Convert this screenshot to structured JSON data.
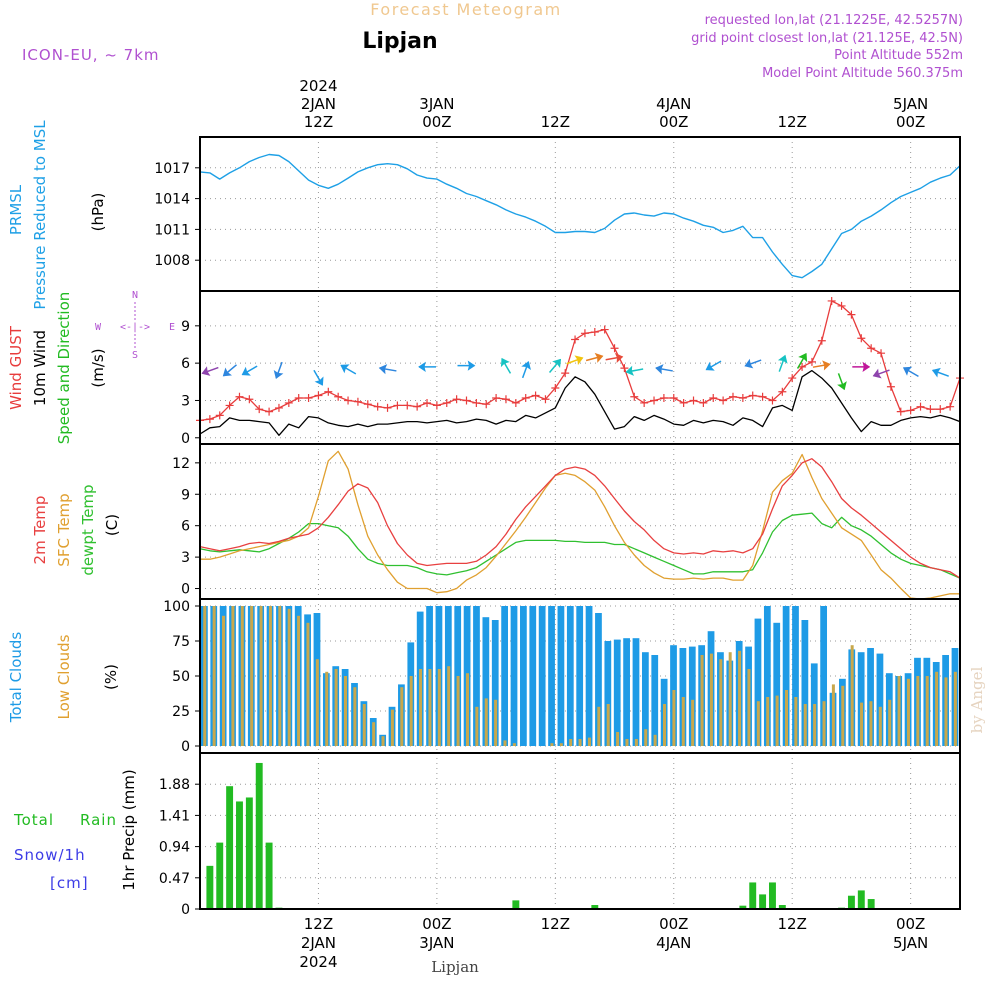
{
  "header": {
    "title": "Forecast Meteogram",
    "location": "Lipjan",
    "model": "ICON-EU, ~ 7km",
    "requested": "requested lon,lat (21.1225E, 42.5257N)",
    "gridpoint": "grid point closest lon,lat (21.125E, 42.5N)",
    "point_alt": "Point Altitude 552m",
    "model_alt": "Model Point Altitude 560.375m",
    "footer": "Lipjan",
    "credit": "by Angel"
  },
  "colors": {
    "pressure": "#1ea0e6",
    "gust": "#e83c3c",
    "wind": "#000000",
    "direction": "#22bb22",
    "t2m": "#e84040",
    "sfc": "#e0a030",
    "dew": "#30c030",
    "total_cloud": "#1e9be6",
    "low_cloud": "#c8a84c",
    "rain": "#22bb22",
    "snow": "#3c3ce6",
    "title": "#f0c890",
    "meta": "#b050d0"
  },
  "time_axis": {
    "hour_start": 0,
    "hour_end": 77,
    "ticks": [
      {
        "hour": 12,
        "top": [
          "2024",
          "2JAN",
          "12Z"
        ],
        "bottom": [
          "12Z",
          "2JAN",
          "2024"
        ]
      },
      {
        "hour": 24,
        "top": [
          "3JAN",
          "00Z"
        ],
        "bottom": [
          "00Z",
          "3JAN"
        ]
      },
      {
        "hour": 36,
        "top": [
          "12Z"
        ],
        "bottom": [
          "12Z"
        ]
      },
      {
        "hour": 48,
        "top": [
          "4JAN",
          "00Z"
        ],
        "bottom": [
          "00Z",
          "4JAN"
        ]
      },
      {
        "hour": 60,
        "top": [
          "12Z"
        ],
        "bottom": [
          "12Z"
        ]
      },
      {
        "hour": 72,
        "top": [
          "5JAN",
          "00Z"
        ],
        "bottom": [
          "00Z",
          "5JAN"
        ]
      }
    ]
  },
  "panel_labels": {
    "pressure": [
      "PRMSL",
      "Pressure Reduced to MSL",
      "(hPa)"
    ],
    "wind": [
      "Wind GUST",
      "10m Wind",
      "Speed and Direction",
      "(m/s)"
    ],
    "compass": {
      "n": "N",
      "s": "S",
      "w": "W",
      "e": "E",
      "arrows": "<-|->"
    },
    "temp": [
      "2m Temp",
      "SFC Temp",
      "dewpt Temp",
      "(C)"
    ],
    "cloud": [
      "Total Clouds",
      "Low Clouds",
      "(%)"
    ],
    "precip": [
      "Total",
      "Rain",
      "Snow/1h",
      "[cm]",
      "1hr Precip (mm)"
    ]
  },
  "chart_data": [
    {
      "type": "line",
      "name": "pressure",
      "ylabel": "(hPa)",
      "ylim": [
        1005,
        1020
      ],
      "yticks": [
        1008,
        1011,
        1014,
        1017
      ],
      "x": [
        0,
        1,
        2,
        3,
        4,
        5,
        6,
        7,
        8,
        9,
        10,
        11,
        12,
        13,
        14,
        15,
        16,
        17,
        18,
        19,
        20,
        21,
        22,
        23,
        24,
        25,
        26,
        27,
        28,
        29,
        30,
        31,
        32,
        33,
        34,
        35,
        36,
        37,
        38,
        39,
        40,
        41,
        42,
        43,
        44,
        45,
        46,
        47,
        48,
        49,
        50,
        51,
        52,
        53,
        54,
        55,
        56,
        57,
        58,
        59,
        60,
        61,
        62,
        63,
        64,
        65,
        66,
        67,
        68,
        69,
        70,
        71,
        72,
        73,
        74,
        75,
        76,
        77
      ],
      "values": [
        1016.6,
        1016.5,
        1015.9,
        1016.5,
        1017.0,
        1017.6,
        1018.0,
        1018.3,
        1018.2,
        1017.6,
        1016.7,
        1015.8,
        1015.3,
        1015.0,
        1015.4,
        1016.0,
        1016.6,
        1017.0,
        1017.3,
        1017.4,
        1017.3,
        1016.9,
        1016.3,
        1016.0,
        1015.9,
        1015.4,
        1015.0,
        1014.5,
        1014.2,
        1013.8,
        1013.4,
        1012.9,
        1012.5,
        1012.2,
        1011.8,
        1011.3,
        1010.7,
        1010.7,
        1010.8,
        1010.8,
        1010.7,
        1011.1,
        1011.9,
        1012.5,
        1012.6,
        1012.4,
        1012.3,
        1012.6,
        1012.5,
        1012.1,
        1011.8,
        1011.4,
        1011.2,
        1010.7,
        1010.9,
        1011.3,
        1010.2,
        1010.2,
        1008.8,
        1007.6,
        1006.5,
        1006.3,
        1006.9,
        1007.6,
        1009.1,
        1010.6,
        1011.0,
        1011.8,
        1012.3,
        1012.9,
        1013.6,
        1014.2,
        1014.6,
        1015.0,
        1015.6,
        1016.0,
        1016.3,
        1017.2
      ]
    },
    {
      "type": "line",
      "name": "wind",
      "ylabel": "(m/s)",
      "ylim": [
        -0.5,
        11.8
      ],
      "yticks": [
        0,
        3,
        6,
        9
      ],
      "series": [
        {
          "name": "Wind GUST",
          "values": [
            1.4,
            1.5,
            1.8,
            2.6,
            3.3,
            3.1,
            2.3,
            2.1,
            2.4,
            2.8,
            3.2,
            3.2,
            3.4,
            3.7,
            3.3,
            3.0,
            2.9,
            2.7,
            2.5,
            2.4,
            2.6,
            2.6,
            2.5,
            2.8,
            2.6,
            2.8,
            3.1,
            3.0,
            2.8,
            2.7,
            3.2,
            3.1,
            2.8,
            3.2,
            3.4,
            3.1,
            4.0,
            5.2,
            7.9,
            8.4,
            8.5,
            8.7,
            7.2,
            5.6,
            3.3,
            2.8,
            3.0,
            3.2,
            3.2,
            2.8,
            3.0,
            2.8,
            3.2,
            3.0,
            3.3,
            3.2,
            3.4,
            3.3,
            3.0,
            3.7,
            4.8,
            5.7,
            6.1,
            7.8,
            11.0,
            10.6,
            9.9,
            8.0,
            7.2,
            6.8,
            4.1,
            2.1,
            2.2,
            2.5,
            2.3,
            2.3,
            2.5,
            4.8
          ]
        },
        {
          "name": "10m Wind",
          "values": [
            0.3,
            0.8,
            0.9,
            1.6,
            1.4,
            1.4,
            1.3,
            1.2,
            0.2,
            1.1,
            0.8,
            1.7,
            1.6,
            1.2,
            1.0,
            0.9,
            1.1,
            0.9,
            1.1,
            1.1,
            1.2,
            1.3,
            1.3,
            1.2,
            1.3,
            1.4,
            1.2,
            1.3,
            1.5,
            1.4,
            1.1,
            1.4,
            1.3,
            1.8,
            1.6,
            2.0,
            2.4,
            4.0,
            4.9,
            4.5,
            3.5,
            2.1,
            0.7,
            0.9,
            1.7,
            1.4,
            1.8,
            1.5,
            1.1,
            1.0,
            1.4,
            1.2,
            1.4,
            1.3,
            1.0,
            1.6,
            1.4,
            0.9,
            2.4,
            2.6,
            2.2,
            4.9,
            5.4,
            4.8,
            4.0,
            2.8,
            1.6,
            0.5,
            1.3,
            1.0,
            1.0,
            1.4,
            1.6,
            1.7,
            1.6,
            1.8,
            1.6,
            1.3
          ]
        }
      ],
      "arrows": [
        {
          "h": 1,
          "dir": 250,
          "color": "#8e44ad",
          "y": 5.4
        },
        {
          "h": 3,
          "dir": 230,
          "color": "#2e86de",
          "y": 5.4
        },
        {
          "h": 5,
          "dir": 240,
          "color": "#1e9be6",
          "y": 5.4
        },
        {
          "h": 8,
          "dir": 200,
          "color": "#2e86de",
          "y": 5.4
        },
        {
          "h": 12,
          "dir": 150,
          "color": "#1e9be6",
          "y": 4.8
        },
        {
          "h": 15,
          "dir": 300,
          "color": "#1e9be6",
          "y": 5.5
        },
        {
          "h": 19,
          "dir": 280,
          "color": "#2e86de",
          "y": 5.5
        },
        {
          "h": 23,
          "dir": 270,
          "color": "#1e9be6",
          "y": 5.7
        },
        {
          "h": 27,
          "dir": 90,
          "color": "#1e9be6",
          "y": 5.8
        },
        {
          "h": 31,
          "dir": 330,
          "color": "#17c3c3",
          "y": 5.8
        },
        {
          "h": 33,
          "dir": 20,
          "color": "#1e9be6",
          "y": 5.5
        },
        {
          "h": 36,
          "dir": 40,
          "color": "#17c3c3",
          "y": 5.8
        },
        {
          "h": 38,
          "dir": 70,
          "color": "#f1c40f",
          "y": 6.2
        },
        {
          "h": 40,
          "dir": 75,
          "color": "#e67e22",
          "y": 6.4
        },
        {
          "h": 42,
          "dir": 80,
          "color": "#e74c3c",
          "y": 6.4
        },
        {
          "h": 44,
          "dir": 260,
          "color": "#17c3c3",
          "y": 5.4
        },
        {
          "h": 47,
          "dir": 280,
          "color": "#2e86de",
          "y": 5.5
        },
        {
          "h": 52,
          "dir": 240,
          "color": "#1e9be6",
          "y": 5.8
        },
        {
          "h": 56,
          "dir": 250,
          "color": "#2e86de",
          "y": 6.0
        },
        {
          "h": 59,
          "dir": 20,
          "color": "#17c3c3",
          "y": 6.0
        },
        {
          "h": 61,
          "dir": 30,
          "color": "#22bb22",
          "y": 6.2
        },
        {
          "h": 63,
          "dir": 80,
          "color": "#e67e22",
          "y": 5.8
        },
        {
          "h": 65,
          "dir": 160,
          "color": "#22bb22",
          "y": 4.5
        },
        {
          "h": 67,
          "dir": 90,
          "color": "#c0179a",
          "y": 5.7
        },
        {
          "h": 69,
          "dir": 250,
          "color": "#8e44ad",
          "y": 5.2
        },
        {
          "h": 72,
          "dir": 300,
          "color": "#2e86de",
          "y": 5.3
        },
        {
          "h": 75,
          "dir": 290,
          "color": "#1e9be6",
          "y": 5.2
        }
      ]
    },
    {
      "type": "line",
      "name": "temperature",
      "ylabel": "(C)",
      "ylim": [
        -1,
        13.8
      ],
      "yticks": [
        0,
        3,
        6,
        9,
        12
      ],
      "series": [
        {
          "name": "2m Temp",
          "values": [
            4.0,
            3.8,
            3.6,
            3.8,
            4.0,
            4.3,
            4.4,
            4.3,
            4.5,
            4.8,
            5.0,
            5.2,
            5.8,
            6.8,
            8.0,
            9.3,
            10.0,
            9.6,
            8.2,
            6.0,
            4.3,
            3.2,
            2.4,
            2.2,
            2.3,
            2.4,
            2.4,
            2.4,
            2.6,
            3.2,
            4.0,
            5.2,
            6.6,
            7.8,
            8.8,
            9.8,
            10.8,
            11.4,
            11.6,
            11.4,
            10.8,
            9.8,
            8.6,
            7.4,
            6.4,
            5.6,
            4.6,
            3.8,
            3.4,
            3.3,
            3.4,
            3.3,
            3.6,
            3.5,
            3.6,
            3.4,
            3.8,
            5.2,
            7.6,
            9.8,
            10.8,
            12.0,
            12.4,
            11.6,
            10.2,
            8.6,
            7.7,
            7.0,
            6.2,
            5.4,
            4.6,
            3.8,
            3.0,
            2.4,
            2.0,
            1.8,
            1.6,
            1.0
          ]
        },
        {
          "name": "SFC Temp",
          "values": [
            2.8,
            2.8,
            3.0,
            3.3,
            3.6,
            3.8,
            4.0,
            4.2,
            4.4,
            4.6,
            5.0,
            5.8,
            8.8,
            12.2,
            13.1,
            11.4,
            8.0,
            5.0,
            3.2,
            1.8,
            0.6,
            0.0,
            0.0,
            0.0,
            -0.4,
            -0.3,
            0.0,
            0.8,
            1.3,
            2.0,
            3.1,
            4.3,
            5.5,
            6.8,
            8.2,
            9.6,
            10.8,
            11.0,
            10.8,
            10.2,
            9.4,
            7.8,
            6.0,
            4.4,
            3.2,
            2.2,
            1.5,
            1.0,
            0.9,
            0.9,
            1.0,
            0.9,
            1.0,
            1.0,
            0.8,
            0.8,
            2.2,
            5.5,
            9.2,
            10.3,
            11.0,
            12.8,
            10.6,
            8.6,
            7.2,
            5.8,
            5.2,
            4.6,
            3.2,
            1.8,
            1.0,
            0.0,
            -0.9,
            -1.0,
            -0.9,
            -0.7,
            -0.5,
            -0.5
          ]
        },
        {
          "name": "dewpt Temp",
          "values": [
            3.8,
            3.6,
            3.5,
            3.6,
            3.7,
            3.6,
            3.5,
            3.8,
            4.3,
            4.8,
            5.4,
            6.2,
            6.2,
            6.0,
            5.8,
            5.0,
            3.8,
            2.8,
            2.4,
            2.2,
            2.2,
            2.2,
            2.0,
            1.6,
            1.4,
            1.3,
            1.5,
            1.7,
            2.0,
            2.6,
            3.2,
            3.8,
            4.4,
            4.6,
            4.6,
            4.6,
            4.6,
            4.5,
            4.5,
            4.4,
            4.4,
            4.4,
            4.2,
            4.2,
            3.8,
            3.4,
            3.0,
            2.6,
            2.2,
            1.8,
            1.4,
            1.4,
            1.6,
            1.6,
            1.6,
            1.6,
            1.8,
            3.4,
            5.4,
            6.5,
            7.0,
            7.1,
            7.2,
            6.2,
            5.8,
            6.8,
            6.0,
            5.6,
            5.0,
            4.2,
            3.4,
            2.8,
            2.4,
            2.2,
            2.0,
            1.8,
            1.4,
            1.0
          ]
        }
      ]
    },
    {
      "type": "bar",
      "name": "clouds",
      "ylabel": "(%)",
      "ylim": [
        -5,
        105
      ],
      "yticks": [
        0,
        25,
        50,
        75,
        100
      ],
      "series": [
        {
          "name": "Total Clouds",
          "values": [
            100,
            100,
            100,
            100,
            100,
            100,
            100,
            100,
            100,
            100,
            100,
            94,
            95,
            52,
            57,
            55,
            45,
            32,
            20,
            8,
            28,
            44,
            74,
            96,
            100,
            100,
            100,
            100,
            100,
            100,
            92,
            90,
            100,
            100,
            100,
            100,
            100,
            100,
            100,
            100,
            100,
            100,
            95,
            75,
            76,
            77,
            77,
            67,
            65,
            48,
            72,
            70,
            71,
            72,
            82,
            67,
            61,
            75,
            71,
            91,
            100,
            88,
            100,
            100,
            90,
            59,
            100,
            38,
            48,
            69,
            67,
            70,
            66,
            52,
            50,
            52,
            63,
            63,
            60,
            65,
            70
          ]
        },
        {
          "name": "Low Clouds",
          "values": [
            100,
            100,
            93,
            100,
            100,
            100,
            100,
            100,
            100,
            98,
            93,
            88,
            62,
            53,
            55,
            50,
            42,
            30,
            17,
            7,
            26,
            42,
            50,
            55,
            55,
            55,
            57,
            50,
            52,
            28,
            34,
            33,
            4,
            2,
            0,
            0,
            0,
            2,
            2,
            5,
            5,
            6,
            28,
            30,
            10,
            5,
            5,
            12,
            8,
            30,
            40,
            35,
            33,
            65,
            66,
            62,
            67,
            68,
            55,
            32,
            35,
            36,
            40,
            35,
            30,
            30,
            32,
            44,
            43,
            72,
            31,
            32,
            28,
            33,
            50,
            48,
            50,
            50,
            53,
            49,
            53,
            62,
            62,
            62,
            60,
            62,
            70
          ]
        }
      ]
    },
    {
      "type": "bar",
      "name": "precipitation",
      "ylabel": "1hr Precip (mm)",
      "ylim": [
        0,
        2.35
      ],
      "yticks": [
        0,
        0.47,
        0.94,
        1.41,
        1.88
      ],
      "x": [
        1,
        2,
        3,
        4,
        5,
        6,
        7,
        8,
        32,
        40,
        55,
        56,
        57,
        58,
        59,
        65,
        66,
        67,
        68
      ],
      "values": [
        0.65,
        1.0,
        1.85,
        1.62,
        1.68,
        2.2,
        1.0,
        0.02,
        0.13,
        0.06,
        0.05,
        0.4,
        0.22,
        0.4,
        0.06,
        0.02,
        0.2,
        0.28,
        0.15
      ]
    }
  ]
}
